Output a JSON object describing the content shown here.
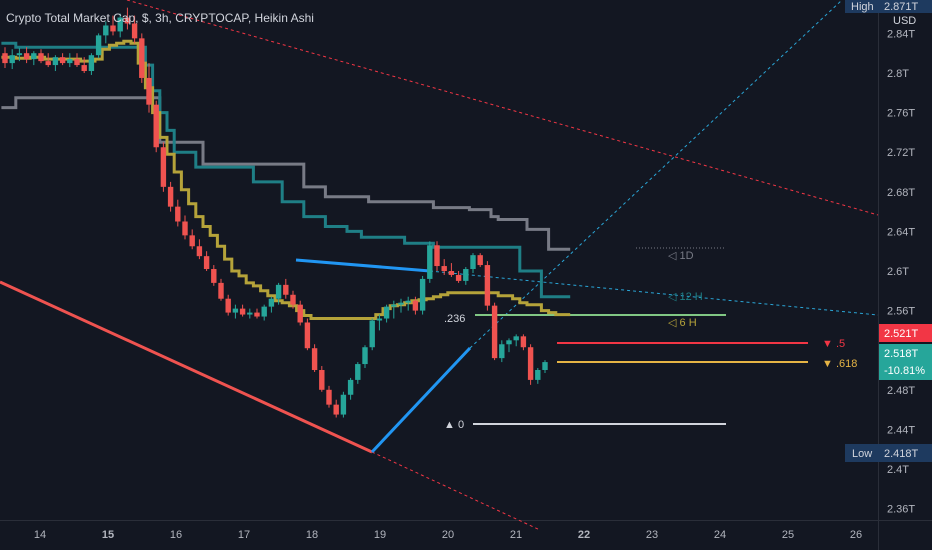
{
  "header": {
    "title": "Crypto Total Market Cap, $, 3h, CRYPTOCAP, Heikin Ashi"
  },
  "currency": "USD",
  "colors": {
    "background": "#131722",
    "up": "#26a69a",
    "down": "#ef5350",
    "grey_line": "#787b86",
    "teal_line": "#1f7f86",
    "olive_line": "#b5a33a",
    "blue": "#2196f3",
    "fib_red": "#f23645",
    "fib_yellow": "#e5b445",
    "fib_green": "#81c784",
    "fib_white": "#d1d4dc"
  },
  "chart_data": {
    "type": "candlestick",
    "style": "Heikin Ashi",
    "title": "Crypto Total Market Cap, $, 3h, CRYPTOCAP, Heikin Ashi",
    "y_axis": {
      "ticks": [
        "2.36T",
        "2.4T",
        "2.44T",
        "2.48T",
        "2.52T",
        "2.56T",
        "2.6T",
        "2.64T",
        "2.68T",
        "2.72T",
        "2.76T",
        "2.8T",
        "2.84T"
      ],
      "range": [
        2.355,
        2.87
      ]
    },
    "x_axis": {
      "ticks": [
        "14",
        "15",
        "16",
        "17",
        "18",
        "19",
        "20",
        "21",
        "22",
        "23",
        "24",
        "25",
        "26"
      ]
    },
    "price_labels": [
      {
        "name": "High",
        "value": "2.871T"
      },
      {
        "name": "current",
        "value": "2.521T"
      },
      {
        "name": "close",
        "value": "2.518T",
        "change": "-10.81%"
      },
      {
        "name": "Low",
        "value": "2.418T"
      }
    ],
    "level_labels": [
      "1D",
      "12 H",
      "6 H"
    ],
    "fib_levels": [
      {
        "label": "▼ .5",
        "value": 2.511
      },
      {
        "label": "▼ .618",
        "value": 2.498
      },
      {
        "label": "▲ 0",
        "value": 2.444
      },
      {
        "label": ".236",
        "value": 2.552
      }
    ],
    "candles": [
      {
        "o": 2.82,
        "h": 2.826,
        "l": 2.805,
        "c": 2.81
      },
      {
        "o": 2.81,
        "h": 2.824,
        "l": 2.804,
        "c": 2.818
      },
      {
        "o": 2.818,
        "h": 2.825,
        "l": 2.812,
        "c": 2.82
      },
      {
        "o": 2.82,
        "h": 2.826,
        "l": 2.81,
        "c": 2.814
      },
      {
        "o": 2.814,
        "h": 2.822,
        "l": 2.808,
        "c": 2.82
      },
      {
        "o": 2.82,
        "h": 2.824,
        "l": 2.81,
        "c": 2.812
      },
      {
        "o": 2.812,
        "h": 2.82,
        "l": 2.806,
        "c": 2.808
      },
      {
        "o": 2.808,
        "h": 2.818,
        "l": 2.802,
        "c": 2.816
      },
      {
        "o": 2.816,
        "h": 2.82,
        "l": 2.808,
        "c": 2.81
      },
      {
        "o": 2.81,
        "h": 2.82,
        "l": 2.806,
        "c": 2.814
      },
      {
        "o": 2.814,
        "h": 2.82,
        "l": 2.806,
        "c": 2.808
      },
      {
        "o": 2.808,
        "h": 2.816,
        "l": 2.8,
        "c": 2.802
      },
      {
        "o": 2.802,
        "h": 2.82,
        "l": 2.798,
        "c": 2.818
      },
      {
        "o": 2.818,
        "h": 2.84,
        "l": 2.815,
        "c": 2.838
      },
      {
        "o": 2.838,
        "h": 2.852,
        "l": 2.83,
        "c": 2.848
      },
      {
        "o": 2.848,
        "h": 2.858,
        "l": 2.838,
        "c": 2.842
      },
      {
        "o": 2.842,
        "h": 2.86,
        "l": 2.836,
        "c": 2.856
      },
      {
        "o": 2.856,
        "h": 2.866,
        "l": 2.844,
        "c": 2.85
      },
      {
        "o": 2.85,
        "h": 2.858,
        "l": 2.83,
        "c": 2.835
      },
      {
        "o": 2.835,
        "h": 2.84,
        "l": 2.79,
        "c": 2.795
      },
      {
        "o": 2.795,
        "h": 2.81,
        "l": 2.76,
        "c": 2.768
      },
      {
        "o": 2.768,
        "h": 2.772,
        "l": 2.72,
        "c": 2.725
      },
      {
        "o": 2.725,
        "h": 2.73,
        "l": 2.68,
        "c": 2.685
      },
      {
        "o": 2.685,
        "h": 2.69,
        "l": 2.66,
        "c": 2.665
      },
      {
        "o": 2.665,
        "h": 2.672,
        "l": 2.645,
        "c": 2.65
      },
      {
        "o": 2.65,
        "h": 2.656,
        "l": 2.632,
        "c": 2.636
      },
      {
        "o": 2.636,
        "h": 2.642,
        "l": 2.622,
        "c": 2.625
      },
      {
        "o": 2.625,
        "h": 2.632,
        "l": 2.612,
        "c": 2.615
      },
      {
        "o": 2.615,
        "h": 2.62,
        "l": 2.6,
        "c": 2.602
      },
      {
        "o": 2.602,
        "h": 2.606,
        "l": 2.585,
        "c": 2.588
      },
      {
        "o": 2.588,
        "h": 2.592,
        "l": 2.57,
        "c": 2.572
      },
      {
        "o": 2.572,
        "h": 2.576,
        "l": 2.555,
        "c": 2.558
      },
      {
        "o": 2.558,
        "h": 2.566,
        "l": 2.552,
        "c": 2.562
      },
      {
        "o": 2.562,
        "h": 2.566,
        "l": 2.554,
        "c": 2.556
      },
      {
        "o": 2.556,
        "h": 2.562,
        "l": 2.552,
        "c": 2.558
      },
      {
        "o": 2.558,
        "h": 2.562,
        "l": 2.552,
        "c": 2.554
      },
      {
        "o": 2.554,
        "h": 2.566,
        "l": 2.55,
        "c": 2.564
      },
      {
        "o": 2.564,
        "h": 2.574,
        "l": 2.558,
        "c": 2.572
      },
      {
        "o": 2.572,
        "h": 2.588,
        "l": 2.566,
        "c": 2.586
      },
      {
        "o": 2.586,
        "h": 2.592,
        "l": 2.572,
        "c": 2.576
      },
      {
        "o": 2.576,
        "h": 2.58,
        "l": 2.562,
        "c": 2.566
      },
      {
        "o": 2.566,
        "h": 2.57,
        "l": 2.545,
        "c": 2.548
      },
      {
        "o": 2.548,
        "h": 2.552,
        "l": 2.52,
        "c": 2.522
      },
      {
        "o": 2.522,
        "h": 2.526,
        "l": 2.498,
        "c": 2.5
      },
      {
        "o": 2.5,
        "h": 2.504,
        "l": 2.478,
        "c": 2.48
      },
      {
        "o": 2.48,
        "h": 2.484,
        "l": 2.462,
        "c": 2.465
      },
      {
        "o": 2.465,
        "h": 2.47,
        "l": 2.452,
        "c": 2.455
      },
      {
        "o": 2.455,
        "h": 2.478,
        "l": 2.452,
        "c": 2.475
      },
      {
        "o": 2.475,
        "h": 2.492,
        "l": 2.47,
        "c": 2.49
      },
      {
        "o": 2.49,
        "h": 2.508,
        "l": 2.486,
        "c": 2.506
      },
      {
        "o": 2.506,
        "h": 2.525,
        "l": 2.502,
        "c": 2.523
      },
      {
        "o": 2.523,
        "h": 2.552,
        "l": 2.52,
        "c": 2.55
      },
      {
        "o": 2.55,
        "h": 2.556,
        "l": 2.54,
        "c": 2.552
      },
      {
        "o": 2.552,
        "h": 2.566,
        "l": 2.548,
        "c": 2.564
      },
      {
        "o": 2.564,
        "h": 2.57,
        "l": 2.552,
        "c": 2.566
      },
      {
        "o": 2.566,
        "h": 2.572,
        "l": 2.558,
        "c": 2.568
      },
      {
        "o": 2.568,
        "h": 2.574,
        "l": 2.56,
        "c": 2.57
      },
      {
        "o": 2.57,
        "h": 2.574,
        "l": 2.556,
        "c": 2.56
      },
      {
        "o": 2.56,
        "h": 2.595,
        "l": 2.556,
        "c": 2.592
      },
      {
        "o": 2.592,
        "h": 2.63,
        "l": 2.588,
        "c": 2.626
      },
      {
        "o": 2.626,
        "h": 2.63,
        "l": 2.6,
        "c": 2.605
      },
      {
        "o": 2.605,
        "h": 2.612,
        "l": 2.596,
        "c": 2.6
      },
      {
        "o": 2.6,
        "h": 2.608,
        "l": 2.594,
        "c": 2.596
      },
      {
        "o": 2.596,
        "h": 2.6,
        "l": 2.588,
        "c": 2.59
      },
      {
        "o": 2.59,
        "h": 2.604,
        "l": 2.586,
        "c": 2.602
      },
      {
        "o": 2.602,
        "h": 2.618,
        "l": 2.598,
        "c": 2.616
      },
      {
        "o": 2.616,
        "h": 2.618,
        "l": 2.604,
        "c": 2.606
      },
      {
        "o": 2.606,
        "h": 2.61,
        "l": 2.56,
        "c": 2.565
      },
      {
        "o": 2.565,
        "h": 2.568,
        "l": 2.51,
        "c": 2.512
      },
      {
        "o": 2.512,
        "h": 2.53,
        "l": 2.508,
        "c": 2.526
      },
      {
        "o": 2.526,
        "h": 2.532,
        "l": 2.518,
        "c": 2.53
      },
      {
        "o": 2.53,
        "h": 2.536,
        "l": 2.524,
        "c": 2.534
      },
      {
        "o": 2.534,
        "h": 2.536,
        "l": 2.52,
        "c": 2.523
      },
      {
        "o": 2.523,
        "h": 2.526,
        "l": 2.485,
        "c": 2.49
      },
      {
        "o": 2.49,
        "h": 2.502,
        "l": 2.486,
        "c": 2.5
      },
      {
        "o": 2.5,
        "h": 2.51,
        "l": 2.497,
        "c": 2.508
      }
    ],
    "ma_lines": [
      {
        "name": "1D",
        "color": "grey",
        "values": [
          2.765,
          2.765,
          2.775,
          2.775,
          2.775,
          2.775,
          2.775,
          2.775,
          2.775,
          2.775,
          2.775,
          2.775,
          2.775,
          2.775,
          2.775,
          2.775,
          2.775,
          2.775,
          2.775,
          2.775,
          2.775,
          2.775,
          2.73,
          2.73,
          2.73,
          2.73,
          2.73,
          2.73,
          2.708,
          2.708,
          2.708,
          2.708,
          2.708,
          2.708,
          2.708,
          2.708,
          2.708,
          2.708,
          2.708,
          2.708,
          2.708,
          2.708,
          2.685,
          2.685,
          2.685,
          2.675,
          2.675,
          2.675,
          2.675,
          2.675,
          2.675,
          2.67,
          2.67,
          2.67,
          2.67,
          2.67,
          2.67,
          2.67,
          2.67,
          2.67,
          2.664,
          2.664,
          2.664,
          2.664,
          2.664,
          2.662,
          2.662,
          2.662,
          2.655,
          2.652,
          2.652,
          2.652,
          2.652,
          2.642,
          2.642,
          2.642,
          2.622,
          2.622,
          2.622
        ]
      },
      {
        "name": "12 H",
        "color": "teal",
        "values": [
          2.83,
          2.83,
          2.826,
          2.826,
          2.826,
          2.826,
          2.826,
          2.826,
          2.826,
          2.826,
          2.826,
          2.826,
          2.826,
          2.826,
          2.826,
          2.826,
          2.826,
          2.826,
          2.826,
          2.826,
          2.808,
          2.782,
          2.76,
          2.742,
          2.72,
          2.72,
          2.72,
          2.705,
          2.705,
          2.705,
          2.705,
          2.705,
          2.705,
          2.705,
          2.705,
          2.69,
          2.69,
          2.69,
          2.69,
          2.67,
          2.67,
          2.67,
          2.655,
          2.655,
          2.655,
          2.645,
          2.645,
          2.645,
          2.64,
          2.64,
          2.634,
          2.634,
          2.634,
          2.634,
          2.634,
          2.634,
          2.628,
          2.628,
          2.628,
          2.628,
          2.624,
          2.624,
          2.624,
          2.624,
          2.624,
          2.624,
          2.624,
          2.624,
          2.624,
          2.624,
          2.624,
          2.624,
          2.6,
          2.6,
          2.6,
          2.574,
          2.574,
          2.574,
          2.574
        ]
      },
      {
        "name": "6 H",
        "color": "olive",
        "values": [
          2.816,
          2.816,
          2.815,
          2.815,
          2.816,
          2.816,
          2.814,
          2.814,
          2.814,
          2.814,
          2.814,
          2.812,
          2.812,
          2.814,
          2.824,
          2.828,
          2.83,
          2.832,
          2.83,
          2.81,
          2.785,
          2.76,
          2.735,
          2.718,
          2.7,
          2.682,
          2.668,
          2.655,
          2.645,
          2.636,
          2.625,
          2.612,
          2.6,
          2.595,
          2.588,
          2.585,
          2.58,
          2.575,
          2.57,
          2.568,
          2.565,
          2.56,
          2.555,
          2.552,
          2.552,
          2.552,
          2.552,
          2.552,
          2.552,
          2.552,
          2.552,
          2.552,
          2.556,
          2.562,
          2.565,
          2.566,
          2.568,
          2.57,
          2.571,
          2.572,
          2.574,
          2.576,
          2.578,
          2.578,
          2.578,
          2.578,
          2.578,
          2.578,
          2.578,
          2.575,
          2.575,
          2.572,
          2.568,
          2.566,
          2.566,
          2.56,
          2.558,
          2.556,
          2.556
        ]
      }
    ]
  }
}
